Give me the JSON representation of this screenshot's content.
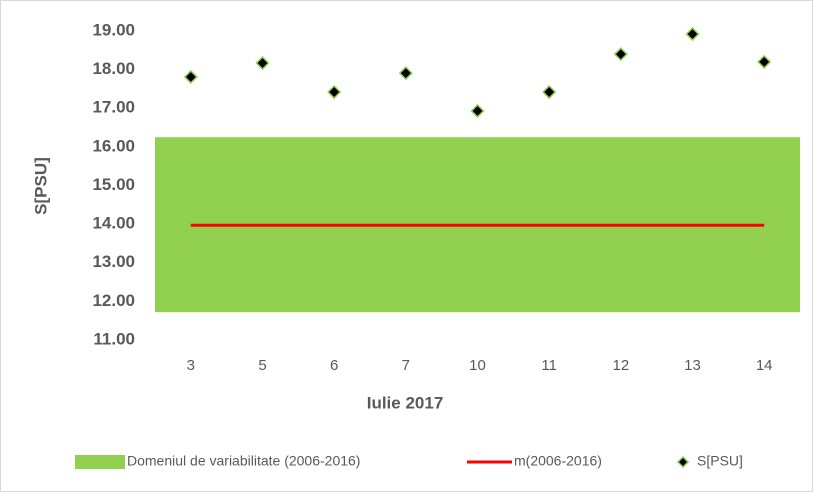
{
  "chart_data": {
    "type": "scatter",
    "x_label": "Iulie 2017",
    "y_label": "S[PSU]",
    "categories": [
      "3",
      "5",
      "6",
      "7",
      "10",
      "11",
      "12",
      "13",
      "14"
    ],
    "ylim": [
      11,
      19
    ],
    "yticks": [
      {
        "value": 11,
        "label": "11.00"
      },
      {
        "value": 12,
        "label": "12.00"
      },
      {
        "value": 13,
        "label": "13.00"
      },
      {
        "value": 14,
        "label": "14.00"
      },
      {
        "value": 15,
        "label": "15.00"
      },
      {
        "value": 16,
        "label": "16.00"
      },
      {
        "value": 17,
        "label": "17.00"
      },
      {
        "value": 18,
        "label": "18.00"
      },
      {
        "value": 19,
        "label": "19.00"
      }
    ],
    "series": [
      {
        "name": "Domeniul de variabilitate (2006-2016)",
        "color": "#92d050",
        "range": [
          11.72,
          16.25
        ]
      },
      {
        "name": "m(2006-2016)",
        "color": "#ff0000",
        "values": [
          13.97,
          13.97,
          13.97,
          13.97,
          13.97,
          13.97,
          13.97,
          13.97,
          13.97
        ]
      },
      {
        "name": "S[PSU]",
        "color": "#000000",
        "values": [
          17.81,
          18.17,
          17.42,
          17.91,
          16.93,
          17.42,
          18.4,
          18.92,
          18.2
        ]
      }
    ],
    "grid": false,
    "legend": "bottom"
  }
}
